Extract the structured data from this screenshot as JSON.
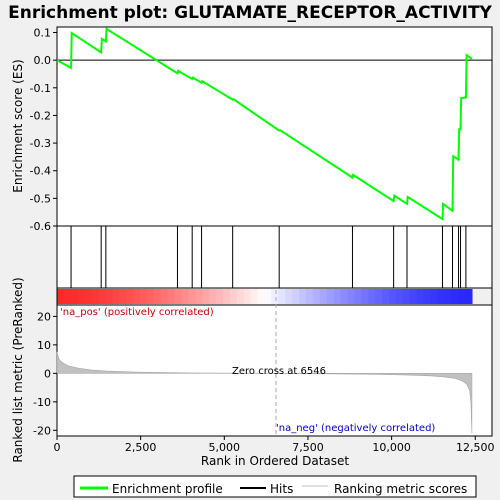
{
  "chart_data": {
    "type": "line",
    "title": "Enrichment plot: GLUTAMATE_RECEPTOR_ACTIVITY",
    "top_panel": {
      "ylabel": "Enrichment score (ES)",
      "ylim": [
        -0.6,
        0.12
      ],
      "yticks": [
        "0.1",
        "0.0",
        "-0.1",
        "-0.2",
        "-0.3",
        "-0.4",
        "-0.5",
        "-0.6"
      ],
      "ytick_values": [
        0.1,
        0.0,
        -0.1,
        -0.2,
        -0.3,
        -0.4,
        -0.5,
        -0.6
      ],
      "series": [
        {
          "name": "Enrichment profile",
          "color": "#00ff00",
          "x": [
            0,
            420,
            440,
            1320,
            1340,
            1460,
            1480,
            3600,
            3620,
            4040,
            4060,
            4320,
            4340,
            5250,
            5270,
            6640,
            6660,
            8830,
            8850,
            10060,
            10080,
            10460,
            10480,
            11520,
            11540,
            11820,
            11840,
            12000,
            12020,
            12060,
            12080,
            12220,
            12240,
            12400
          ],
          "y": [
            0.0,
            -0.028,
            0.098,
            0.028,
            0.077,
            0.068,
            0.113,
            -0.048,
            -0.039,
            -0.068,
            -0.063,
            -0.082,
            -0.076,
            -0.143,
            -0.141,
            -0.255,
            -0.253,
            -0.425,
            -0.415,
            -0.51,
            -0.49,
            -0.52,
            -0.495,
            -0.575,
            -0.52,
            -0.545,
            -0.348,
            -0.36,
            -0.25,
            -0.25,
            -0.137,
            -0.135,
            0.018,
            0.005
          ]
        }
      ]
    },
    "hits": [
      420,
      1320,
      1460,
      3600,
      4040,
      4320,
      5250,
      6640,
      8830,
      10060,
      10460,
      11520,
      11820,
      12000,
      12060,
      12220
    ],
    "bottom_panel": {
      "ylabel": "Ranked list metric (PreRanked)",
      "xlabel": "Rank in Ordered Dataset",
      "ylim": [
        -22,
        24
      ],
      "yticks": [
        "20",
        "10",
        "0",
        "-10",
        "-20"
      ],
      "ytick_values": [
        20,
        10,
        0,
        -10,
        -20
      ],
      "xlim": [
        0,
        13000
      ],
      "xticks": [
        "0",
        "2,500",
        "5,000",
        "7,500",
        "10,000",
        "12,500"
      ],
      "xtick_values": [
        0,
        2500,
        5000,
        7500,
        10000,
        12500
      ],
      "series": [
        {
          "name": "Ranking metric scores",
          "color": "#c0c0c0",
          "x": [
            0,
            20,
            60,
            120,
            200,
            350,
            600,
            1000,
            1500,
            2500,
            4000,
            5500,
            6546,
            8000,
            9500,
            10500,
            11200,
            11600,
            11900,
            12100,
            12250,
            12330,
            12370,
            12400
          ],
          "y": [
            7.5,
            6.5,
            5.0,
            4.2,
            3.5,
            2.6,
            1.9,
            1.2,
            0.8,
            0.4,
            0.15,
            0.05,
            0.0,
            -0.15,
            -0.35,
            -0.6,
            -0.9,
            -1.3,
            -1.8,
            -2.6,
            -3.8,
            -6.0,
            -10.0,
            -21.0
          ]
        }
      ],
      "zero_cross_label": "Zero cross at 6546",
      "zero_cross": 6546,
      "pos_label": "'na_pos' (positively correlated)",
      "neg_label": "'na_neg' (negatively correlated)"
    },
    "legend": {
      "placement": "bottom",
      "entries": [
        "Enrichment profile",
        "Hits",
        "Ranking metric scores"
      ]
    }
  },
  "colors": {
    "profile": "#00ff00",
    "pos_text": "#cc0000",
    "neg_text": "#0000cc",
    "heat_red": "#ff0000",
    "heat_blue": "#0000ff"
  }
}
